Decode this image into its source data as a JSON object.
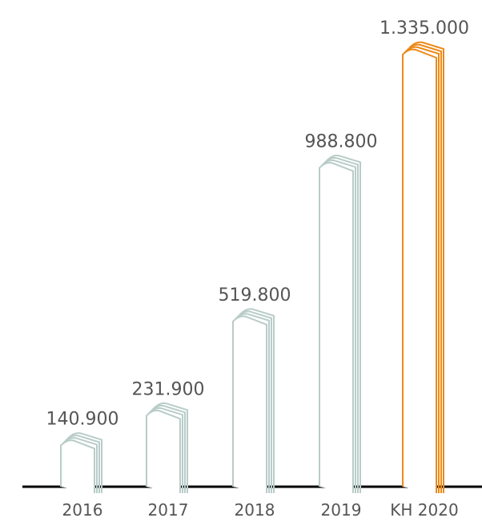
{
  "chart_data": {
    "type": "bar",
    "categories": [
      "2016",
      "2017",
      "2018",
      "2019",
      "KH 2020"
    ],
    "values": [
      140900,
      231900,
      519800,
      988800,
      1335000
    ],
    "value_labels": [
      "140.900",
      "231.900",
      "519.800",
      "988.800",
      "1.335.000"
    ],
    "ylim": [
      0,
      1335000
    ],
    "grid": false,
    "legend": "none",
    "title": "",
    "xlabel": "",
    "ylabel": ""
  },
  "colors": {
    "bar": "#b8ccc8",
    "highlight_bar": "#ec8a1a",
    "baseline": "#000000",
    "text": "#555555"
  },
  "highlight_index": 4
}
